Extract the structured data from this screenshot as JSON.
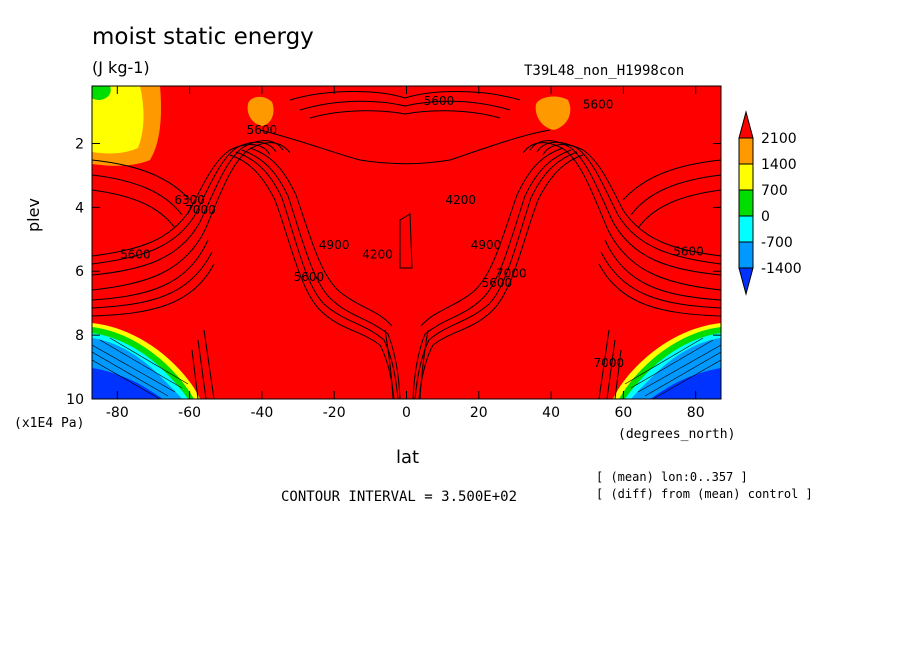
{
  "chart_data": {
    "type": "heatmap",
    "title": "moist static energy",
    "units": "(J kg-1)",
    "run_label": "T39L48_non_H1998con",
    "xlabel": "lat",
    "x_unit_label": "(degrees_north)",
    "ylabel": "plev",
    "y_unit_label": "(x1E4 Pa)",
    "xlim": [
      -87,
      87
    ],
    "ylim": [
      0.2,
      10
    ],
    "y_inverted": true,
    "x_ticks": [
      "-80",
      "-60",
      "-40",
      "-20",
      "0",
      "20",
      "40",
      "60",
      "80"
    ],
    "x_tick_values": [
      -80,
      -60,
      -40,
      -20,
      0,
      20,
      40,
      60,
      80
    ],
    "y_ticks": [
      "2",
      "4",
      "6",
      "8",
      "10"
    ],
    "y_tick_values": [
      2,
      4,
      6,
      8,
      10
    ],
    "contour_interval_text": "CONTOUR INTERVAL = 3.500E+02",
    "notes": [
      "[ (mean) lon:0..357 ]",
      "[ (diff) from (mean) control ]"
    ],
    "colorbar": {
      "levels": [
        "2100",
        "1400",
        "700",
        "0",
        "-700",
        "-1400"
      ],
      "colors": [
        "#ff0000",
        "#ff9900",
        "#ffff00",
        "#00dd00",
        "#00ffff",
        "#0099ff",
        "#0033ff"
      ]
    },
    "contour_labels": [
      {
        "text": "5600",
        "lat": -75,
        "plev": 5.6
      },
      {
        "text": "6300",
        "lat": -60,
        "plev": 3.9
      },
      {
        "text": "7000",
        "lat": -57,
        "plev": 4.2
      },
      {
        "text": "5600",
        "lat": -27,
        "plev": 6.3
      },
      {
        "text": "4900",
        "lat": -20,
        "plev": 5.3
      },
      {
        "text": "4200",
        "lat": -8,
        "plev": 5.6
      },
      {
        "text": "5600",
        "lat": -40,
        "plev": 1.7
      },
      {
        "text": "5600",
        "lat": 9,
        "plev": 0.8
      },
      {
        "text": "4200",
        "lat": 15,
        "plev": 3.9
      },
      {
        "text": "4900",
        "lat": 22,
        "plev": 5.3
      },
      {
        "text": "5600",
        "lat": 25,
        "plev": 6.5
      },
      {
        "text": "7000",
        "lat": 29,
        "plev": 6.2
      },
      {
        "text": "5600",
        "lat": 53,
        "plev": 0.9
      },
      {
        "text": "5600",
        "lat": 78,
        "plev": 5.5
      },
      {
        "text": "7000",
        "lat": 56,
        "plev": 9.0
      }
    ]
  }
}
